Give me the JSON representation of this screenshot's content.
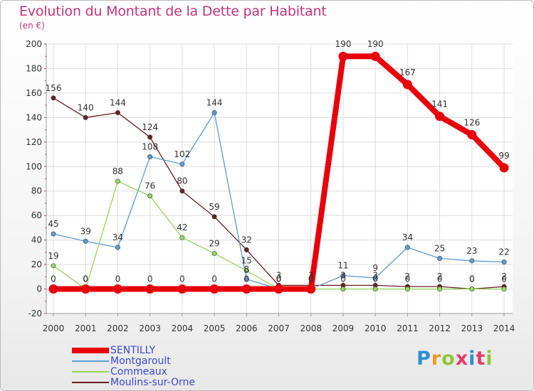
{
  "header": {
    "title": "Evolution du Montant de la Dette par Habitant",
    "subtitle": "(en €)"
  },
  "brand": {
    "text": "Proxiti",
    "colors": [
      "#2e8fd1",
      "#f29b1d",
      "#8dc63f",
      "#e43d6b",
      "#2e8fd1",
      "#e43d6b",
      "#8dc63f"
    ]
  },
  "chart_data": {
    "type": "line",
    "title": "Evolution du Montant de la Dette par Habitant",
    "subtitle": "(en €)",
    "xlabel": "",
    "ylabel": "",
    "x": [
      "2000",
      "2001",
      "2002",
      "2003",
      "2004",
      "2005",
      "2006",
      "2007",
      "2008",
      "2009",
      "2010",
      "2011",
      "2012",
      "2013",
      "2014"
    ],
    "ylim": [
      -20,
      200
    ],
    "yticks": [
      -20,
      0,
      20,
      40,
      60,
      80,
      100,
      120,
      140,
      160,
      180,
      200
    ],
    "grid": true,
    "legend_position": "bottom-left",
    "series": [
      {
        "name": "SENTILLY",
        "color": "#e8000b",
        "values": [
          0,
          0,
          0,
          0,
          0,
          0,
          0,
          0,
          0,
          190,
          190,
          167,
          141,
          126,
          99
        ],
        "labels": [
          "0",
          "0",
          "0",
          "0",
          "0",
          "0",
          "0",
          "0",
          "0",
          "190",
          "190",
          "167",
          "141",
          "126",
          "99"
        ]
      },
      {
        "name": "Montgaroult",
        "color": "#5b9bd5",
        "values": [
          45,
          39,
          34,
          108,
          102,
          144,
          8,
          0,
          0,
          11,
          9,
          34,
          25,
          23,
          22
        ],
        "labels": [
          "45",
          "39",
          "34",
          "108",
          "102",
          "144",
          "8",
          "0",
          "0",
          "11",
          "9",
          "34",
          "25",
          "23",
          "22"
        ]
      },
      {
        "name": "Commeaux",
        "color": "#8fd85a",
        "values": [
          19,
          0,
          88,
          76,
          42,
          29,
          15,
          0,
          0,
          0,
          0,
          0,
          0,
          0,
          0
        ],
        "labels": [
          "19",
          "0",
          "88",
          "76",
          "42",
          "29",
          "15",
          "0",
          "0",
          "0",
          "0",
          "0",
          "0",
          "0",
          "0"
        ]
      },
      {
        "name": "Moulins-sur-Orne",
        "color": "#6b1f1f",
        "values": [
          156,
          140,
          144,
          124,
          80,
          59,
          32,
          3,
          3,
          3,
          3,
          2,
          2,
          0,
          2
        ],
        "labels": [
          "156",
          "140",
          "144",
          "124",
          "80",
          "59",
          "32",
          "3",
          "3",
          "3",
          "3",
          "2",
          "2",
          "0",
          "2"
        ]
      }
    ]
  }
}
